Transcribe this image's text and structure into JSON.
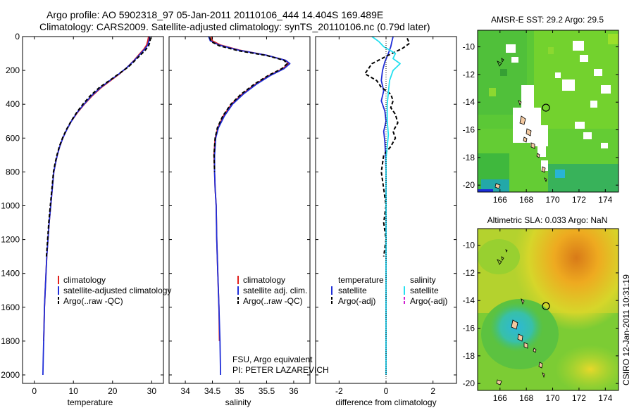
{
  "header": {
    "line1": "Argo profile: AO 5902318_97 05-Jan-2011 20110106_444 14.404S 169.489E",
    "line2": "Climatology: CARS2009. Satellite-adjusted climatology: synTS_20110106.nc (0.79d later)"
  },
  "sidebar_stamp": "CSIRO 12-Jan-2011 10:31:19",
  "colors": {
    "climatology": "#e0201c",
    "satellite": "#1f2ed8",
    "argo": "#000000",
    "sat_salinity": "#22e0f0",
    "argo_adj_salinity": "#d020d0"
  },
  "chart_data": [
    {
      "type": "line",
      "id": "temperature",
      "xlabel": "temperature",
      "ylabel": "",
      "xlim": [
        -3,
        33
      ],
      "ylim": [
        0,
        2050
      ],
      "y_inverted": true,
      "xticks": [
        0,
        10,
        20,
        30
      ],
      "yticks": [
        0,
        200,
        400,
        600,
        800,
        1000,
        1200,
        1400,
        1600,
        1800,
        2000
      ],
      "legend": [
        "climatology",
        "satellite-adjusted climatology",
        "Argo(..raw -QC)"
      ],
      "series": [
        {
          "name": "climatology",
          "color": "climatology",
          "dash": false,
          "points": [
            [
              29.2,
              0
            ],
            [
              29.0,
              25
            ],
            [
              28.7,
              50
            ],
            [
              28.0,
              75
            ],
            [
              27.0,
              100
            ],
            [
              25.5,
              140
            ],
            [
              23.8,
              180
            ],
            [
              21.8,
              220
            ],
            [
              19.5,
              260
            ],
            [
              17.2,
              300
            ],
            [
              14.8,
              350
            ],
            [
              12.8,
              400
            ],
            [
              11.0,
              450
            ],
            [
              9.5,
              500
            ],
            [
              8.3,
              550
            ],
            [
              7.3,
              600
            ],
            [
              6.5,
              650
            ],
            [
              5.9,
              700
            ],
            [
              5.4,
              750
            ],
            [
              5.0,
              800
            ],
            [
              4.6,
              900
            ],
            [
              4.2,
              1000
            ],
            [
              3.8,
              1100
            ],
            [
              3.5,
              1200
            ],
            [
              3.2,
              1300
            ],
            [
              3.0,
              1400
            ],
            [
              2.8,
              1500
            ],
            [
              2.6,
              1600
            ],
            [
              2.5,
              1700
            ],
            [
              2.4,
              1800
            ]
          ]
        },
        {
          "name": "satellite-adjusted climatology",
          "color": "satellite",
          "dash": false,
          "points": [
            [
              29.5,
              0
            ],
            [
              29.3,
              25
            ],
            [
              29.0,
              50
            ],
            [
              28.2,
              75
            ],
            [
              27.2,
              100
            ],
            [
              25.6,
              140
            ],
            [
              23.8,
              180
            ],
            [
              21.7,
              220
            ],
            [
              19.3,
              260
            ],
            [
              17.0,
              300
            ],
            [
              14.6,
              350
            ],
            [
              12.7,
              400
            ],
            [
              10.9,
              450
            ],
            [
              9.5,
              500
            ],
            [
              8.3,
              550
            ],
            [
              7.3,
              600
            ],
            [
              6.5,
              650
            ],
            [
              5.9,
              700
            ],
            [
              5.4,
              750
            ],
            [
              5.0,
              800
            ],
            [
              4.6,
              900
            ],
            [
              4.2,
              1000
            ],
            [
              3.8,
              1100
            ],
            [
              3.5,
              1200
            ],
            [
              3.2,
              1300
            ],
            [
              3.0,
              1400
            ],
            [
              2.8,
              1500
            ],
            [
              2.6,
              1600
            ],
            [
              2.5,
              1700
            ],
            [
              2.4,
              1800
            ],
            [
              2.3,
              1900
            ],
            [
              2.2,
              2000
            ]
          ]
        },
        {
          "name": "Argo(..raw -QC)",
          "color": "argo",
          "dash": true,
          "points": [
            [
              29.6,
              5
            ],
            [
              29.6,
              30
            ],
            [
              29.2,
              55
            ],
            [
              28.4,
              80
            ],
            [
              27.3,
              105
            ],
            [
              25.8,
              140
            ],
            [
              24.0,
              180
            ],
            [
              21.6,
              220
            ],
            [
              19.2,
              260
            ],
            [
              16.7,
              300
            ],
            [
              14.3,
              350
            ],
            [
              12.4,
              400
            ],
            [
              10.8,
              450
            ],
            [
              9.4,
              500
            ],
            [
              8.2,
              550
            ],
            [
              7.2,
              600
            ],
            [
              6.4,
              650
            ],
            [
              5.8,
              700
            ],
            [
              5.3,
              750
            ],
            [
              4.9,
              800
            ],
            [
              4.5,
              900
            ],
            [
              4.1,
              1000
            ],
            [
              3.7,
              1100
            ],
            [
              3.4,
              1200
            ],
            [
              3.1,
              1300
            ]
          ]
        }
      ]
    },
    {
      "type": "line",
      "id": "salinity",
      "xlabel": "salinity",
      "ylabel": "",
      "xlim": [
        33.7,
        36.3
      ],
      "ylim": [
        0,
        2050
      ],
      "y_inverted": true,
      "xticks": [
        34,
        34.5,
        35,
        35.5,
        36
      ],
      "legend": [
        "climatology",
        "satellite adj. clim.",
        "Argo(..raw -QC)"
      ],
      "annotation": [
        "FSU, Argo equivalent",
        "PI: PETER LAZAREVICH"
      ],
      "series": [
        {
          "name": "climatology",
          "color": "climatology",
          "dash": false,
          "points": [
            [
              34.48,
              0
            ],
            [
              34.5,
              25
            ],
            [
              34.65,
              50
            ],
            [
              35.0,
              80
            ],
            [
              35.5,
              110
            ],
            [
              35.85,
              140
            ],
            [
              35.9,
              160
            ],
            [
              35.8,
              190
            ],
            [
              35.55,
              230
            ],
            [
              35.3,
              280
            ],
            [
              35.05,
              340
            ],
            [
              34.85,
              400
            ],
            [
              34.7,
              470
            ],
            [
              34.6,
              540
            ],
            [
              34.55,
              600
            ],
            [
              34.54,
              650
            ],
            [
              34.53,
              700
            ],
            [
              34.54,
              800
            ],
            [
              34.55,
              900
            ],
            [
              34.57,
              1000
            ],
            [
              34.58,
              1200
            ],
            [
              34.6,
              1400
            ],
            [
              34.62,
              1600
            ],
            [
              34.63,
              1800
            ]
          ]
        },
        {
          "name": "satellite adj. clim.",
          "color": "satellite",
          "dash": false,
          "points": [
            [
              34.43,
              0
            ],
            [
              34.46,
              25
            ],
            [
              34.62,
              50
            ],
            [
              34.98,
              80
            ],
            [
              35.5,
              110
            ],
            [
              35.85,
              140
            ],
            [
              35.93,
              160
            ],
            [
              35.82,
              190
            ],
            [
              35.57,
              230
            ],
            [
              35.32,
              280
            ],
            [
              35.07,
              340
            ],
            [
              34.87,
              400
            ],
            [
              34.72,
              470
            ],
            [
              34.61,
              540
            ],
            [
              34.56,
              600
            ],
            [
              34.55,
              650
            ],
            [
              34.54,
              700
            ],
            [
              34.54,
              800
            ],
            [
              34.55,
              900
            ],
            [
              34.57,
              1000
            ],
            [
              34.58,
              1200
            ],
            [
              34.6,
              1400
            ],
            [
              34.62,
              1600
            ],
            [
              34.64,
              1800
            ],
            [
              34.65,
              2000
            ]
          ]
        },
        {
          "name": "Argo(..raw -QC)",
          "color": "argo",
          "dash": true,
          "points": [
            [
              34.45,
              5
            ],
            [
              34.48,
              30
            ],
            [
              34.63,
              55
            ],
            [
              35.0,
              85
            ],
            [
              35.5,
              112
            ],
            [
              35.82,
              140
            ],
            [
              35.88,
              160
            ],
            [
              35.78,
              190
            ],
            [
              35.53,
              230
            ],
            [
              35.28,
              280
            ],
            [
              35.03,
              340
            ],
            [
              34.84,
              400
            ],
            [
              34.69,
              470
            ],
            [
              34.59,
              540
            ],
            [
              34.55,
              600
            ],
            [
              34.54,
              650
            ],
            [
              34.53,
              700
            ],
            [
              34.54,
              800
            ]
          ]
        }
      ]
    },
    {
      "type": "line",
      "id": "difference",
      "xlabel": "difference from climatology",
      "ylabel": "",
      "xlim": [
        -3,
        3
      ],
      "ylim": [
        0,
        2050
      ],
      "y_inverted": true,
      "xticks": [
        -2,
        0,
        2
      ],
      "legend_headers": [
        "temperature",
        "salinity"
      ],
      "legend": [
        "satellite",
        "Argo(-adj)",
        "satellite",
        "Argo(-adj)"
      ],
      "series": [
        {
          "name": "temperature satellite",
          "color": "satellite",
          "dash": false,
          "points": [
            [
              0.3,
              0
            ],
            [
              0.25,
              30
            ],
            [
              0.2,
              60
            ],
            [
              0.1,
              100
            ],
            [
              -0.05,
              150
            ],
            [
              -0.15,
              200
            ],
            [
              -0.2,
              260
            ],
            [
              -0.1,
              320
            ],
            [
              -0.2,
              380
            ],
            [
              -0.05,
              440
            ],
            [
              0.0,
              500
            ],
            [
              -0.1,
              560
            ],
            [
              -0.05,
              620
            ],
            [
              -0.02,
              700
            ],
            [
              0.0,
              800
            ],
            [
              0.0,
              1000
            ],
            [
              0.0,
              1200
            ],
            [
              0.0,
              1600
            ],
            [
              0.0,
              2000
            ]
          ]
        },
        {
          "name": "temperature Argo(-adj)",
          "color": "argo",
          "dash": true,
          "points": [
            [
              0.9,
              10
            ],
            [
              1.0,
              40
            ],
            [
              0.7,
              70
            ],
            [
              0.1,
              110
            ],
            [
              -0.6,
              160
            ],
            [
              -0.9,
              220
            ],
            [
              -0.4,
              260
            ],
            [
              -0.2,
              300
            ],
            [
              0.2,
              340
            ],
            [
              0.3,
              380
            ],
            [
              0.2,
              420
            ],
            [
              0.4,
              460
            ],
            [
              0.5,
              510
            ],
            [
              0.3,
              560
            ],
            [
              0.4,
              600
            ],
            [
              0.2,
              650
            ],
            [
              -0.1,
              700
            ],
            [
              -0.2,
              800
            ],
            [
              -0.1,
              900
            ],
            [
              0.0,
              1000
            ],
            [
              -0.1,
              1100
            ],
            [
              0.0,
              1200
            ],
            [
              -0.1,
              1300
            ]
          ]
        },
        {
          "name": "salinity satellite",
          "color": "sat_salinity",
          "dash": false,
          "points": [
            [
              -0.6,
              0
            ],
            [
              -0.3,
              30
            ],
            [
              -0.1,
              60
            ],
            [
              0.4,
              100
            ],
            [
              0.3,
              130
            ],
            [
              0.6,
              160
            ],
            [
              0.3,
              200
            ],
            [
              0.15,
              260
            ],
            [
              0.1,
              330
            ],
            [
              0.05,
              400
            ],
            [
              0.05,
              500
            ],
            [
              0.1,
              580
            ],
            [
              0.05,
              650
            ],
            [
              0.0,
              720
            ],
            [
              0.0,
              800
            ],
            [
              0.0,
              1000
            ],
            [
              0.0,
              1200
            ],
            [
              0.0,
              1600
            ],
            [
              0.0,
              2000
            ]
          ]
        },
        {
          "name": "salinity Argo(-adj)",
          "color": "argo_adj_salinity",
          "dash": true,
          "points": []
        }
      ]
    },
    {
      "type": "heatmap",
      "id": "sst_map",
      "title": "AMSR-E SST: 29.2  Argo: 29.5",
      "xlim": [
        164.3,
        175
      ],
      "ylim": [
        -20.5,
        -8.8
      ],
      "xticks": [
        166,
        168,
        170,
        172,
        174
      ],
      "yticks": [
        -10,
        -12,
        -14,
        -16,
        -18,
        -20
      ],
      "marker": [
        169.49,
        -14.4
      ]
    },
    {
      "type": "heatmap",
      "id": "sla_map",
      "title": "Altimetric SLA: 0.033  Argo: NaN",
      "xlim": [
        164.3,
        175
      ],
      "ylim": [
        -20.5,
        -8.8
      ],
      "xticks": [
        166,
        168,
        170,
        172,
        174
      ],
      "yticks": [
        -10,
        -12,
        -14,
        -16,
        -18,
        -20
      ],
      "marker": [
        169.49,
        -14.4
      ]
    }
  ]
}
